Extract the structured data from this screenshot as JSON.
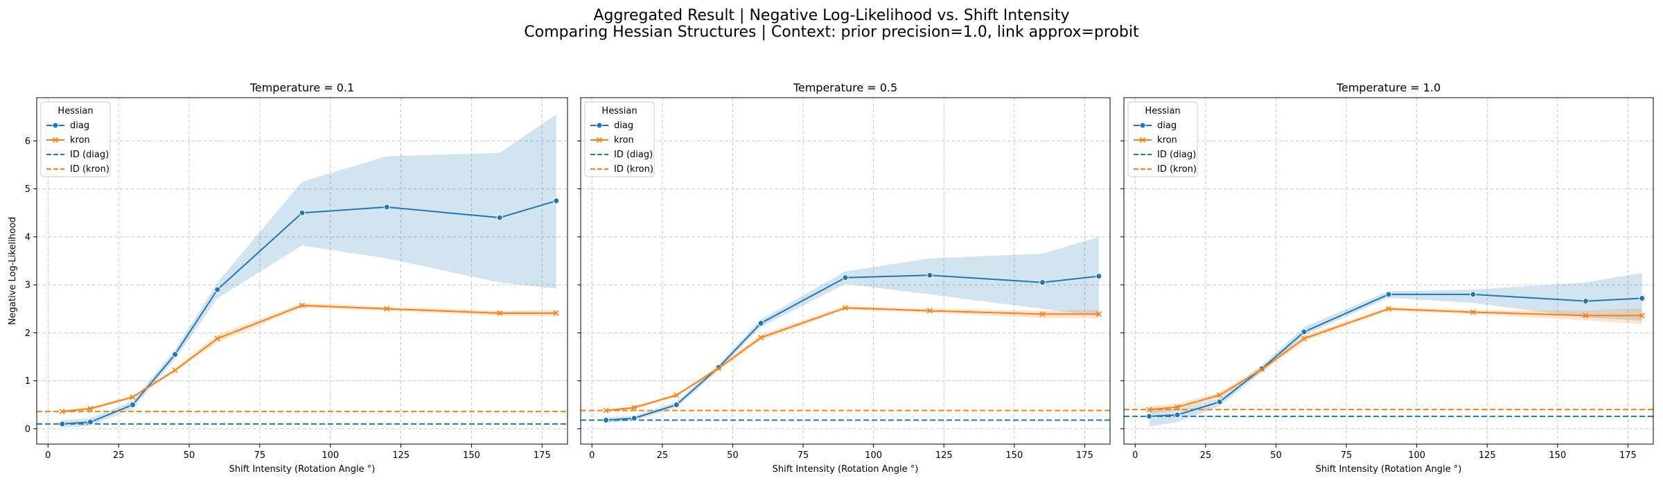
{
  "figure": {
    "title": "Aggregated Result | Negative Log-Likelihood vs. Shift Intensity",
    "subtitle": "Comparing Hessian Structures | Context: prior precision=1.0, link approx=probit"
  },
  "colors": {
    "diag": "#1f77b4",
    "kron": "#ff7f0e"
  },
  "chart_data": [
    {
      "type": "line",
      "title": "Temperature = 0.1",
      "xlabel": "Shift Intensity (Rotation Angle °)",
      "ylabel": "Negative Log-Likelihood",
      "xlim": [
        -4,
        184
      ],
      "ylim": [
        -0.32,
        6.9
      ],
      "xticks": [
        0,
        25,
        50,
        75,
        100,
        125,
        150,
        175
      ],
      "yticks": [
        0,
        1,
        2,
        3,
        4,
        5,
        6
      ],
      "grid": true,
      "legend": {
        "title": "Hessian",
        "placement": "upper left",
        "entries": [
          "diag",
          "kron",
          "ID (diag)",
          "ID (kron)"
        ]
      },
      "x": [
        5,
        15,
        30,
        45,
        60,
        90,
        120,
        160,
        180
      ],
      "series": [
        {
          "name": "diag",
          "values": [
            0.1,
            0.14,
            0.5,
            1.55,
            2.9,
            4.5,
            4.62,
            4.4,
            4.75
          ],
          "lower": [
            0.02,
            0.06,
            0.42,
            1.45,
            2.72,
            3.82,
            3.55,
            3.05,
            2.92
          ],
          "upper": [
            0.18,
            0.22,
            0.58,
            1.65,
            3.05,
            5.15,
            5.68,
            5.75,
            6.55
          ]
        },
        {
          "name": "kron",
          "values": [
            0.36,
            0.42,
            0.66,
            1.22,
            1.88,
            2.57,
            2.5,
            2.41,
            2.41
          ],
          "lower": [
            0.33,
            0.39,
            0.63,
            1.18,
            1.8,
            2.52,
            2.46,
            2.36,
            2.34
          ],
          "upper": [
            0.39,
            0.45,
            0.69,
            1.26,
            1.96,
            2.62,
            2.54,
            2.46,
            2.48
          ]
        }
      ],
      "hlines": [
        {
          "name": "ID (diag)",
          "y": 0.1
        },
        {
          "name": "ID (kron)",
          "y": 0.36
        }
      ]
    },
    {
      "type": "line",
      "title": "Temperature = 0.5",
      "xlabel": "Shift Intensity (Rotation Angle °)",
      "ylabel": "",
      "xlim": [
        -4,
        184
      ],
      "ylim": [
        -0.32,
        6.9
      ],
      "xticks": [
        0,
        25,
        50,
        75,
        100,
        125,
        150,
        175
      ],
      "yticks": [
        0,
        1,
        2,
        3,
        4,
        5,
        6
      ],
      "grid": true,
      "legend": {
        "title": "Hessian",
        "placement": "upper left",
        "entries": [
          "diag",
          "kron",
          "ID (diag)",
          "ID (kron)"
        ]
      },
      "x": [
        5,
        15,
        30,
        45,
        60,
        90,
        120,
        160,
        180
      ],
      "series": [
        {
          "name": "diag",
          "values": [
            0.18,
            0.22,
            0.5,
            1.28,
            2.2,
            3.15,
            3.2,
            3.05,
            3.18
          ],
          "lower": [
            0.12,
            0.17,
            0.44,
            1.22,
            2.12,
            3.02,
            2.8,
            2.5,
            2.35
          ],
          "upper": [
            0.24,
            0.27,
            0.56,
            1.34,
            2.28,
            3.28,
            3.55,
            3.65,
            4.0
          ]
        },
        {
          "name": "kron",
          "values": [
            0.38,
            0.44,
            0.7,
            1.26,
            1.9,
            2.52,
            2.46,
            2.39,
            2.39
          ],
          "lower": [
            0.35,
            0.41,
            0.67,
            1.22,
            1.84,
            2.48,
            2.42,
            2.31,
            2.3
          ],
          "upper": [
            0.41,
            0.47,
            0.73,
            1.3,
            1.96,
            2.56,
            2.5,
            2.46,
            2.48
          ]
        }
      ],
      "hlines": [
        {
          "name": "ID (diag)",
          "y": 0.18
        },
        {
          "name": "ID (kron)",
          "y": 0.38
        }
      ]
    },
    {
      "type": "line",
      "title": "Temperature = 1.0",
      "xlabel": "Shift Intensity (Rotation Angle °)",
      "ylabel": "",
      "xlim": [
        -4,
        184
      ],
      "ylim": [
        -0.32,
        6.9
      ],
      "xticks": [
        0,
        25,
        50,
        75,
        100,
        125,
        150,
        175
      ],
      "yticks": [
        0,
        1,
        2,
        3,
        4,
        5,
        6
      ],
      "grid": true,
      "legend": {
        "title": "Hessian",
        "placement": "upper left",
        "entries": [
          "diag",
          "kron",
          "ID (diag)",
          "ID (kron)"
        ]
      },
      "x": [
        5,
        15,
        30,
        45,
        60,
        90,
        120,
        160,
        180
      ],
      "series": [
        {
          "name": "diag",
          "values": [
            0.26,
            0.29,
            0.56,
            1.25,
            2.02,
            2.8,
            2.8,
            2.66,
            2.72
          ],
          "lower": [
            0.05,
            0.14,
            0.47,
            1.18,
            1.95,
            2.73,
            2.62,
            2.32,
            2.25
          ],
          "upper": [
            0.4,
            0.4,
            0.64,
            1.32,
            2.12,
            2.87,
            2.9,
            3.05,
            3.25
          ]
        },
        {
          "name": "kron",
          "values": [
            0.4,
            0.45,
            0.7,
            1.24,
            1.88,
            2.5,
            2.43,
            2.36,
            2.36
          ],
          "lower": [
            0.32,
            0.38,
            0.66,
            1.18,
            1.82,
            2.46,
            2.39,
            2.26,
            2.18
          ],
          "upper": [
            0.48,
            0.52,
            0.76,
            1.3,
            1.94,
            2.54,
            2.47,
            2.46,
            2.52
          ]
        }
      ],
      "hlines": [
        {
          "name": "ID (diag)",
          "y": 0.26
        },
        {
          "name": "ID (kron)",
          "y": 0.4
        }
      ]
    }
  ]
}
